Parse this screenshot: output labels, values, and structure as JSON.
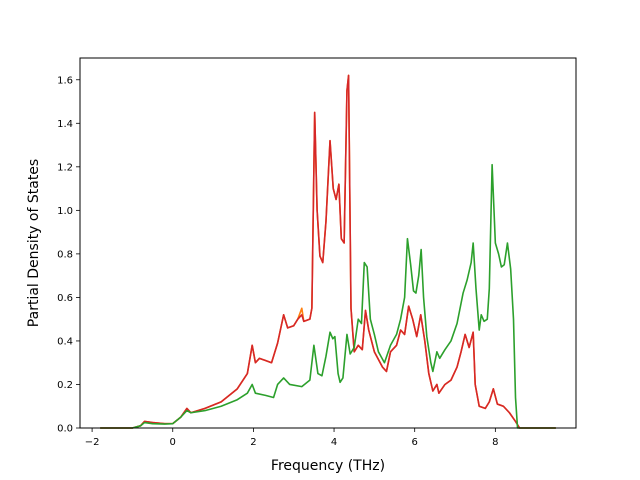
{
  "chart_data": {
    "type": "line",
    "title": "",
    "xlabel": "Frequency (THz)",
    "ylabel": "Partial Density of States",
    "xlim": [
      -2.3,
      10.0
    ],
    "ylim": [
      0.0,
      1.7
    ],
    "xticks": [
      -2,
      0,
      2,
      4,
      6,
      8
    ],
    "yticks": [
      0.0,
      0.2,
      0.4,
      0.6,
      0.8,
      1.0,
      1.2,
      1.4,
      1.6
    ],
    "xtick_labels": [
      "−2",
      "0",
      "2",
      "4",
      "6",
      "8"
    ],
    "ytick_labels": [
      "0.0",
      "0.2",
      "0.4",
      "0.6",
      "0.8",
      "1.0",
      "1.2",
      "1.4",
      "1.6"
    ],
    "grid": false,
    "legend": "none",
    "series": [
      {
        "color": "#ff7f0e",
        "points": [
          [
            -1.8,
            0.0
          ],
          [
            -1.0,
            0.0
          ],
          [
            -0.8,
            0.01
          ],
          [
            -0.7,
            0.03
          ],
          [
            -0.5,
            0.025
          ],
          [
            -0.2,
            0.02
          ],
          [
            0.0,
            0.02
          ],
          [
            0.2,
            0.05
          ],
          [
            0.35,
            0.09
          ],
          [
            0.45,
            0.07
          ],
          [
            0.8,
            0.09
          ],
          [
            1.2,
            0.12
          ],
          [
            1.6,
            0.18
          ],
          [
            1.85,
            0.25
          ],
          [
            1.97,
            0.38
          ],
          [
            2.05,
            0.3
          ],
          [
            2.15,
            0.32
          ],
          [
            2.3,
            0.31
          ],
          [
            2.45,
            0.3
          ],
          [
            2.6,
            0.39
          ],
          [
            2.75,
            0.52
          ],
          [
            2.85,
            0.46
          ],
          [
            3.0,
            0.47
          ],
          [
            3.1,
            0.5
          ],
          [
            3.2,
            0.55
          ],
          [
            3.25,
            0.49
          ],
          [
            3.4,
            0.5
          ],
          [
            3.45,
            0.55
          ],
          [
            3.52,
            1.45
          ],
          [
            3.58,
            1.0
          ],
          [
            3.65,
            0.79
          ],
          [
            3.72,
            0.76
          ],
          [
            3.8,
            0.95
          ],
          [
            3.9,
            1.32
          ],
          [
            3.98,
            1.1
          ],
          [
            4.05,
            1.05
          ],
          [
            4.12,
            1.12
          ],
          [
            4.18,
            0.87
          ],
          [
            4.25,
            0.85
          ],
          [
            4.32,
            1.55
          ],
          [
            4.36,
            1.62
          ],
          [
            4.42,
            0.55
          ],
          [
            4.5,
            0.35
          ],
          [
            4.6,
            0.38
          ],
          [
            4.7,
            0.36
          ],
          [
            4.78,
            0.54
          ],
          [
            4.86,
            0.45
          ],
          [
            5.0,
            0.35
          ],
          [
            5.2,
            0.28
          ],
          [
            5.3,
            0.26
          ],
          [
            5.4,
            0.35
          ],
          [
            5.55,
            0.38
          ],
          [
            5.65,
            0.45
          ],
          [
            5.75,
            0.43
          ],
          [
            5.85,
            0.56
          ],
          [
            5.95,
            0.5
          ],
          [
            6.05,
            0.42
          ],
          [
            6.15,
            0.52
          ],
          [
            6.25,
            0.4
          ],
          [
            6.35,
            0.25
          ],
          [
            6.45,
            0.17
          ],
          [
            6.55,
            0.2
          ],
          [
            6.6,
            0.16
          ],
          [
            6.75,
            0.2
          ],
          [
            6.9,
            0.22
          ],
          [
            7.05,
            0.28
          ],
          [
            7.15,
            0.35
          ],
          [
            7.25,
            0.43
          ],
          [
            7.35,
            0.37
          ],
          [
            7.45,
            0.44
          ],
          [
            7.5,
            0.2
          ],
          [
            7.6,
            0.1
          ],
          [
            7.75,
            0.09
          ],
          [
            7.85,
            0.12
          ],
          [
            7.95,
            0.18
          ],
          [
            8.05,
            0.11
          ],
          [
            8.2,
            0.1
          ],
          [
            8.35,
            0.07
          ],
          [
            8.5,
            0.03
          ],
          [
            8.6,
            0.0
          ],
          [
            9.5,
            0.0
          ]
        ]
      },
      {
        "color": "#d62728",
        "points": [
          [
            -1.8,
            0.0
          ],
          [
            -1.0,
            0.0
          ],
          [
            -0.8,
            0.01
          ],
          [
            -0.7,
            0.03
          ],
          [
            -0.5,
            0.025
          ],
          [
            -0.2,
            0.02
          ],
          [
            0.0,
            0.02
          ],
          [
            0.2,
            0.05
          ],
          [
            0.35,
            0.09
          ],
          [
            0.45,
            0.07
          ],
          [
            0.8,
            0.09
          ],
          [
            1.2,
            0.12
          ],
          [
            1.6,
            0.18
          ],
          [
            1.85,
            0.25
          ],
          [
            1.97,
            0.38
          ],
          [
            2.05,
            0.3
          ],
          [
            2.15,
            0.32
          ],
          [
            2.3,
            0.31
          ],
          [
            2.45,
            0.3
          ],
          [
            2.6,
            0.39
          ],
          [
            2.75,
            0.52
          ],
          [
            2.85,
            0.46
          ],
          [
            3.0,
            0.47
          ],
          [
            3.1,
            0.5
          ],
          [
            3.2,
            0.52
          ],
          [
            3.25,
            0.49
          ],
          [
            3.4,
            0.5
          ],
          [
            3.45,
            0.55
          ],
          [
            3.52,
            1.45
          ],
          [
            3.58,
            1.0
          ],
          [
            3.65,
            0.79
          ],
          [
            3.72,
            0.76
          ],
          [
            3.8,
            0.95
          ],
          [
            3.9,
            1.32
          ],
          [
            3.98,
            1.1
          ],
          [
            4.05,
            1.05
          ],
          [
            4.12,
            1.12
          ],
          [
            4.18,
            0.87
          ],
          [
            4.25,
            0.85
          ],
          [
            4.32,
            1.55
          ],
          [
            4.36,
            1.62
          ],
          [
            4.42,
            0.55
          ],
          [
            4.5,
            0.35
          ],
          [
            4.6,
            0.38
          ],
          [
            4.7,
            0.36
          ],
          [
            4.78,
            0.54
          ],
          [
            4.86,
            0.45
          ],
          [
            5.0,
            0.35
          ],
          [
            5.2,
            0.28
          ],
          [
            5.3,
            0.26
          ],
          [
            5.4,
            0.35
          ],
          [
            5.55,
            0.38
          ],
          [
            5.65,
            0.45
          ],
          [
            5.75,
            0.43
          ],
          [
            5.85,
            0.56
          ],
          [
            5.95,
            0.5
          ],
          [
            6.05,
            0.42
          ],
          [
            6.15,
            0.52
          ],
          [
            6.25,
            0.4
          ],
          [
            6.35,
            0.25
          ],
          [
            6.45,
            0.17
          ],
          [
            6.55,
            0.2
          ],
          [
            6.6,
            0.16
          ],
          [
            6.75,
            0.2
          ],
          [
            6.9,
            0.22
          ],
          [
            7.05,
            0.28
          ],
          [
            7.15,
            0.35
          ],
          [
            7.25,
            0.43
          ],
          [
            7.35,
            0.37
          ],
          [
            7.45,
            0.44
          ],
          [
            7.5,
            0.2
          ],
          [
            7.6,
            0.1
          ],
          [
            7.75,
            0.09
          ],
          [
            7.85,
            0.12
          ],
          [
            7.95,
            0.18
          ],
          [
            8.05,
            0.11
          ],
          [
            8.2,
            0.1
          ],
          [
            8.35,
            0.07
          ],
          [
            8.5,
            0.03
          ],
          [
            8.6,
            0.0
          ],
          [
            9.5,
            0.0
          ]
        ]
      },
      {
        "color": "#2ca02c",
        "points": [
          [
            -1.8,
            0.0
          ],
          [
            -1.0,
            0.0
          ],
          [
            -0.8,
            0.01
          ],
          [
            -0.7,
            0.025
          ],
          [
            -0.5,
            0.02
          ],
          [
            -0.2,
            0.018
          ],
          [
            0.0,
            0.02
          ],
          [
            0.2,
            0.05
          ],
          [
            0.35,
            0.08
          ],
          [
            0.45,
            0.07
          ],
          [
            0.8,
            0.08
          ],
          [
            1.2,
            0.1
          ],
          [
            1.6,
            0.13
          ],
          [
            1.85,
            0.16
          ],
          [
            1.97,
            0.2
          ],
          [
            2.05,
            0.16
          ],
          [
            2.3,
            0.15
          ],
          [
            2.5,
            0.14
          ],
          [
            2.6,
            0.2
          ],
          [
            2.75,
            0.23
          ],
          [
            2.9,
            0.2
          ],
          [
            3.2,
            0.19
          ],
          [
            3.4,
            0.22
          ],
          [
            3.5,
            0.38
          ],
          [
            3.6,
            0.25
          ],
          [
            3.7,
            0.24
          ],
          [
            3.8,
            0.33
          ],
          [
            3.9,
            0.44
          ],
          [
            3.97,
            0.41
          ],
          [
            4.02,
            0.42
          ],
          [
            4.1,
            0.25
          ],
          [
            4.15,
            0.21
          ],
          [
            4.22,
            0.23
          ],
          [
            4.32,
            0.43
          ],
          [
            4.4,
            0.34
          ],
          [
            4.5,
            0.37
          ],
          [
            4.6,
            0.5
          ],
          [
            4.68,
            0.48
          ],
          [
            4.75,
            0.76
          ],
          [
            4.82,
            0.74
          ],
          [
            4.9,
            0.5
          ],
          [
            5.0,
            0.43
          ],
          [
            5.1,
            0.35
          ],
          [
            5.25,
            0.3
          ],
          [
            5.4,
            0.38
          ],
          [
            5.55,
            0.43
          ],
          [
            5.65,
            0.5
          ],
          [
            5.75,
            0.6
          ],
          [
            5.82,
            0.87
          ],
          [
            5.9,
            0.75
          ],
          [
            5.97,
            0.63
          ],
          [
            6.03,
            0.62
          ],
          [
            6.1,
            0.7
          ],
          [
            6.16,
            0.82
          ],
          [
            6.22,
            0.6
          ],
          [
            6.3,
            0.42
          ],
          [
            6.4,
            0.3
          ],
          [
            6.45,
            0.26
          ],
          [
            6.55,
            0.35
          ],
          [
            6.62,
            0.32
          ],
          [
            6.75,
            0.36
          ],
          [
            6.9,
            0.4
          ],
          [
            7.05,
            0.48
          ],
          [
            7.2,
            0.62
          ],
          [
            7.3,
            0.68
          ],
          [
            7.4,
            0.76
          ],
          [
            7.45,
            0.85
          ],
          [
            7.52,
            0.64
          ],
          [
            7.6,
            0.45
          ],
          [
            7.65,
            0.52
          ],
          [
            7.72,
            0.49
          ],
          [
            7.8,
            0.5
          ],
          [
            7.85,
            0.64
          ],
          [
            7.92,
            1.21
          ],
          [
            8.0,
            0.85
          ],
          [
            8.08,
            0.8
          ],
          [
            8.15,
            0.74
          ],
          [
            8.22,
            0.75
          ],
          [
            8.3,
            0.85
          ],
          [
            8.38,
            0.73
          ],
          [
            8.45,
            0.5
          ],
          [
            8.5,
            0.14
          ],
          [
            8.55,
            0.0
          ],
          [
            9.5,
            0.0
          ]
        ]
      }
    ]
  }
}
